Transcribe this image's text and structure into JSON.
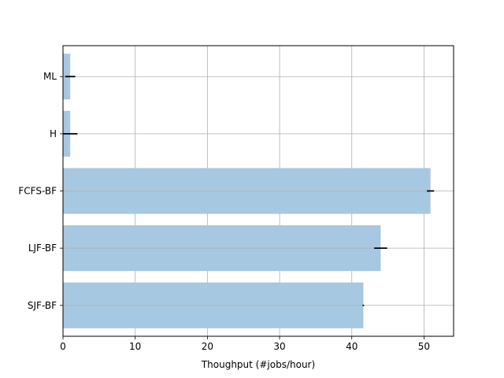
{
  "chart_data": {
    "type": "bar",
    "orientation": "horizontal",
    "categories": [
      "SJF-BF",
      "LJF-BF",
      "FCFS-BF",
      "H",
      "ML"
    ],
    "values": [
      41.6,
      44.0,
      50.9,
      1.0,
      1.0
    ],
    "errors": [
      0.1,
      0.9,
      0.5,
      1.0,
      0.7
    ],
    "xlabel": "Thoughput (#jobs/hour)",
    "ylabel": "",
    "title": "",
    "xlim": [
      0,
      54.1
    ],
    "xticks": [
      0,
      10,
      20,
      30,
      40,
      50
    ],
    "grid": true,
    "bar_color": "#a6c8e0",
    "error_color": "#000000",
    "grid_color": "#b0b0b0"
  }
}
